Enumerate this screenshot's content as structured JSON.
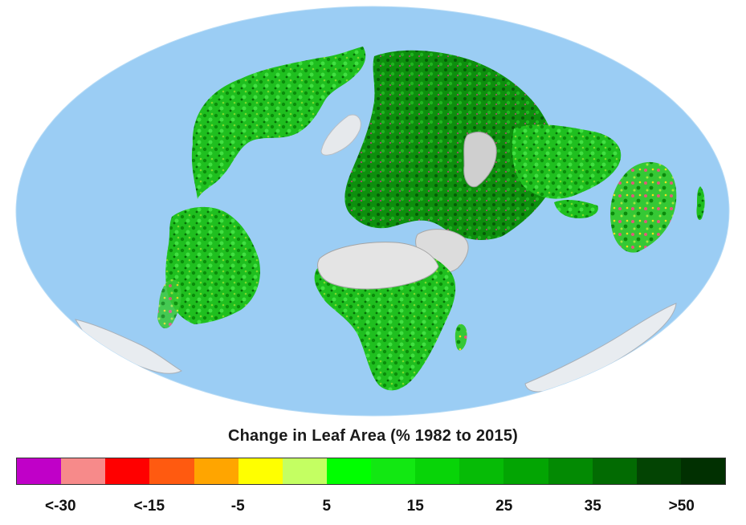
{
  "map": {
    "projection": "elliptical-world",
    "ocean_color": "#9bcdf4",
    "ice_color": "#e6e9ec",
    "desert_color": "#dcdcdc"
  },
  "legend": {
    "title": "Change in Leaf Area (% 1982 to 2015)",
    "colors": [
      "#c000c8",
      "#f78a8a",
      "#ff0000",
      "#ff5a10",
      "#ffa500",
      "#ffff00",
      "#c4ff62",
      "#00ff00",
      "#12e812",
      "#08d408",
      "#06bb06",
      "#03a503",
      "#038a03",
      "#026b02",
      "#034403",
      "#013001"
    ],
    "tick_labels": [
      {
        "text": "<-30",
        "index": 1
      },
      {
        "text": "<-15",
        "index": 3
      },
      {
        "text": "-5",
        "index": 5
      },
      {
        "text": "5",
        "index": 7
      },
      {
        "text": "15",
        "index": 9
      },
      {
        "text": "25",
        "index": 11
      },
      {
        "text": "35",
        "index": 13
      },
      {
        "text": ">50",
        "index": 15
      }
    ]
  }
}
